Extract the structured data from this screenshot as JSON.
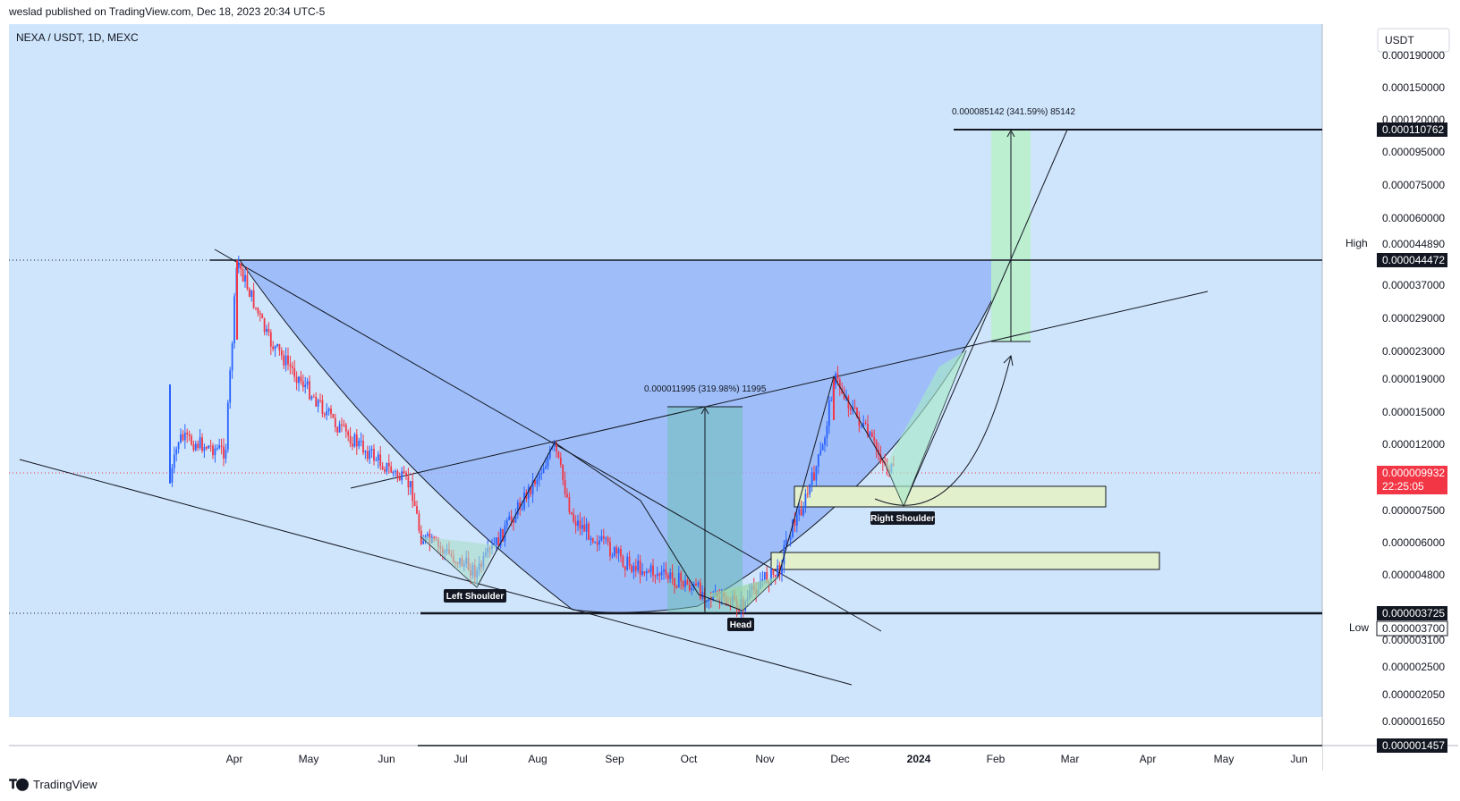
{
  "header": {
    "published": "weslad published on TradingView.com, Dec 18, 2023 20:34 UTC-5"
  },
  "symbol": {
    "label": "NEXA / USDT, 1D, MEXC"
  },
  "currency_button": "USDT",
  "footer": {
    "brand": "TradingView",
    "logo_icon": "tradingview-logo-icon"
  },
  "colors": {
    "plot_bg": "#cfe5fb",
    "cup_fill": "#8fb0f8",
    "up_candle": "#2962ff",
    "down_candle": "#f23645",
    "target_fill": "#b8f0c8",
    "zone_fill": "#e2f0cc",
    "current_price_bg": "#f23645"
  },
  "chart_data": {
    "type": "candlestick",
    "symbol": "NEXA / USDT",
    "interval": "1D",
    "exchange": "MEXC",
    "x_ticks": [
      "Apr",
      "May",
      "Jun",
      "Jul",
      "Aug",
      "Sep",
      "Oct",
      "Nov",
      "Dec",
      "2024",
      "Feb",
      "Mar",
      "Apr",
      "May",
      "Jun"
    ],
    "y_ticks": [
      "0.000190000",
      "0.000150000",
      "0.000120000",
      "0.000095000",
      "0.000075000",
      "0.000060000",
      "0.000044890",
      "0.000037000",
      "0.000029000",
      "0.000023000",
      "0.000019000",
      "0.000015000",
      "0.000012000",
      "0.000007500",
      "0.000006000",
      "0.000004800",
      "0.000003700",
      "0.000003100",
      "0.000002500",
      "0.000002050",
      "0.000001650"
    ],
    "y_scale": "log",
    "price_labels": {
      "target": "0.000110762",
      "high_label": "High",
      "high_value": "0.000044890",
      "resistance": "0.000044472",
      "current": "0.000009932",
      "countdown": "22:25:05",
      "support": "0.000003725",
      "low_label": "Low",
      "low_value": "0.000003700",
      "bottom": "0.000001457"
    },
    "measurements": [
      {
        "text": "0.000011995 (319.98%) 11995"
      },
      {
        "text": "0.000085142 (341.59%) 85142"
      }
    ],
    "pattern_labels": [
      "Left Shoulder",
      "Head",
      "Right Shoulder"
    ],
    "key_points": [
      {
        "x": "Mar 2023",
        "y": 8.2e-06
      },
      {
        "x": "Apr 2023",
        "y": 4.4e-05
      },
      {
        "x": "Jul 2023",
        "y": 4.3e-06
      },
      {
        "x": "Aug 2023",
        "y": 1.2e-05
      },
      {
        "x": "Oct 2023",
        "y": 3.7e-06
      },
      {
        "x": "Nov 2023",
        "y": 6.3e-06
      },
      {
        "x": "Nov 2023",
        "y": 2e-05
      },
      {
        "x": "Dec 2023",
        "y": 9.9e-06
      }
    ]
  }
}
